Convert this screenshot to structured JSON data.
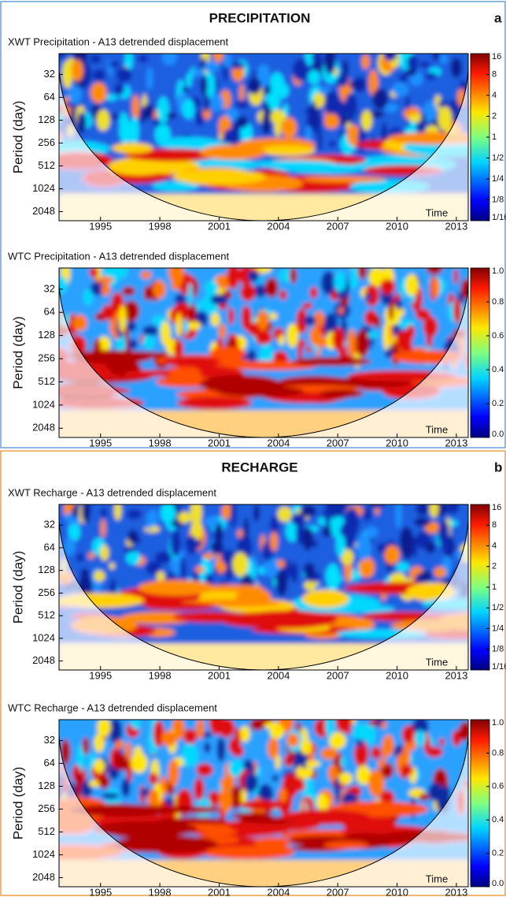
{
  "sections": [
    {
      "title": "PRECIPITATION",
      "label": "a",
      "plots": [
        {
          "title": "XWT Precipitation - A13 detrended displacement",
          "y_label": "Period (day)",
          "x_label": "Time",
          "yscale": "log2",
          "ylim": [
            17,
            2700
          ],
          "yticks": [
            32,
            64,
            128,
            256,
            512,
            1024,
            2048
          ],
          "xlim": [
            1992.9,
            2013.6
          ],
          "xticks": [
            1995,
            1998,
            2001,
            2004,
            2007,
            2010,
            2013
          ],
          "colorbar_scale": "log2",
          "colorbar_lim": [
            0.0625,
            16
          ],
          "colorbar_ticks": [
            16,
            8,
            4,
            2,
            1,
            {
              "value": 0.5,
              "label": "1/2"
            },
            {
              "value": 0.25,
              "label": "1/4"
            },
            {
              "value": 0.125,
              "label": "1/8"
            },
            {
              "value": 0.0625,
              "label": "1/16"
            }
          ]
        },
        {
          "title": "WTC Precipitation - A13 detrended displacement",
          "y_label": "Period (day)",
          "x_label": "Time",
          "yscale": "log2",
          "ylim": [
            17,
            2700
          ],
          "yticks": [
            32,
            64,
            128,
            256,
            512,
            1024,
            2048
          ],
          "xlim": [
            1992.9,
            2013.6
          ],
          "xticks": [
            1995,
            1998,
            2001,
            2004,
            2007,
            2010,
            2013
          ],
          "colorbar_scale": "linear",
          "colorbar_lim": [
            0,
            1
          ],
          "colorbar_ticks": [
            {
              "value": 1,
              "label": "1.0"
            },
            0.8,
            0.6,
            0.4,
            0.2,
            {
              "value": 0,
              "label": "0.0"
            }
          ]
        }
      ]
    },
    {
      "title": "RECHARGE",
      "label": "b",
      "plots": [
        {
          "title": "XWT Recharge - A13 detrended displacement",
          "y_label": "Period (day)",
          "x_label": "Time",
          "yscale": "log2",
          "ylim": [
            17,
            2700
          ],
          "yticks": [
            32,
            64,
            128,
            256,
            512,
            1024,
            2048
          ],
          "xlim": [
            1992.9,
            2013.6
          ],
          "xticks": [
            1995,
            1998,
            2001,
            2004,
            2007,
            2010,
            2013
          ],
          "colorbar_scale": "log2",
          "colorbar_lim": [
            0.0625,
            16
          ],
          "colorbar_ticks": [
            16,
            8,
            4,
            2,
            1,
            {
              "value": 0.5,
              "label": "1/2"
            },
            {
              "value": 0.25,
              "label": "1/4"
            },
            {
              "value": 0.125,
              "label": "1/8"
            },
            {
              "value": 0.0625,
              "label": "1/16"
            }
          ]
        },
        {
          "title": "WTC Recharge - A13 detrended displacement",
          "y_label": "Period (day)",
          "x_label": "Time",
          "yscale": "log2",
          "ylim": [
            17,
            2700
          ],
          "yticks": [
            32,
            64,
            128,
            256,
            512,
            1024,
            2048
          ],
          "xlim": [
            1992.9,
            2013.6
          ],
          "xticks": [
            1995,
            1998,
            2001,
            2004,
            2007,
            2010,
            2013
          ],
          "colorbar_scale": "linear",
          "colorbar_lim": [
            0,
            1
          ],
          "colorbar_ticks": [
            {
              "value": 1,
              "label": "1.0"
            },
            0.8,
            0.6,
            0.4,
            0.2,
            {
              "value": 0,
              "label": "0.0"
            }
          ]
        }
      ]
    }
  ]
}
